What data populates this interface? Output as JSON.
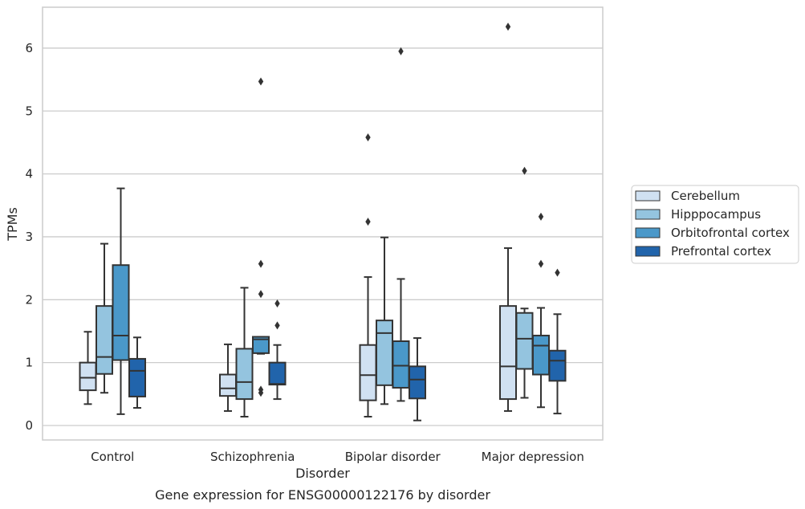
{
  "chart_data": {
    "type": "box",
    "title": "",
    "caption": "Gene expression for ENSG00000122176 by disorder",
    "xlabel": "Disorder",
    "ylabel": "TPMs",
    "ylim": [
      -0.23,
      6.65
    ],
    "yticks": [
      "0",
      "1",
      "2",
      "3",
      "4",
      "5",
      "6"
    ],
    "grid": "horizontal",
    "legend_position": "right",
    "categories": [
      "Control",
      "Schizophrenia",
      "Bipolar disorder",
      "Major depression"
    ],
    "series": [
      {
        "name": "Cerebellum",
        "color": "#d0e1f2",
        "boxes": [
          {
            "whislo": 0.34,
            "q1": 0.56,
            "med": 0.76,
            "q3": 1.0,
            "whishi": 1.49,
            "fliers": []
          },
          {
            "whislo": 0.23,
            "q1": 0.47,
            "med": 0.59,
            "q3": 0.81,
            "whishi": 1.29,
            "fliers": []
          },
          {
            "whislo": 0.14,
            "q1": 0.4,
            "med": 0.8,
            "q3": 1.28,
            "whishi": 2.36,
            "fliers": [
              3.24,
              4.58
            ]
          },
          {
            "whislo": 0.23,
            "q1": 0.42,
            "med": 0.94,
            "q3": 1.9,
            "whishi": 2.82,
            "fliers": [
              6.34
            ]
          }
        ]
      },
      {
        "name": "Hipppocampus",
        "color": "#94c4df",
        "boxes": [
          {
            "whislo": 0.52,
            "q1": 0.82,
            "med": 1.09,
            "q3": 1.9,
            "whishi": 2.89,
            "fliers": []
          },
          {
            "whislo": 0.14,
            "q1": 0.42,
            "med": 0.69,
            "q3": 1.22,
            "whishi": 2.19,
            "fliers": []
          },
          {
            "whislo": 0.34,
            "q1": 0.64,
            "med": 1.47,
            "q3": 1.67,
            "whishi": 2.99,
            "fliers": []
          },
          {
            "whislo": 0.44,
            "q1": 0.9,
            "med": 1.38,
            "q3": 1.79,
            "whishi": 1.86,
            "fliers": [
              4.05
            ]
          }
        ]
      },
      {
        "name": "Orbitofrontal cortex",
        "color": "#4a98c9",
        "boxes": [
          {
            "whislo": 0.18,
            "q1": 1.04,
            "med": 1.43,
            "q3": 2.55,
            "whishi": 3.77,
            "fliers": []
          },
          {
            "whislo": 1.14,
            "q1": 1.15,
            "med": 1.37,
            "q3": 1.41,
            "whishi": 1.41,
            "fliers": [
              0.52,
              0.57,
              2.09,
              2.57,
              5.47
            ]
          },
          {
            "whislo": 0.39,
            "q1": 0.6,
            "med": 0.95,
            "q3": 1.34,
            "whishi": 2.33,
            "fliers": [
              5.95
            ]
          },
          {
            "whislo": 0.29,
            "q1": 0.81,
            "med": 1.27,
            "q3": 1.43,
            "whishi": 1.87,
            "fliers": [
              2.57,
              3.32
            ]
          }
        ]
      },
      {
        "name": "Prefrontal cortex",
        "color": "#2164ab",
        "boxes": [
          {
            "whislo": 0.28,
            "q1": 0.46,
            "med": 0.87,
            "q3": 1.06,
            "whishi": 1.4,
            "fliers": []
          },
          {
            "whislo": 0.42,
            "q1": 0.65,
            "med": 0.66,
            "q3": 1.0,
            "whishi": 1.28,
            "fliers": [
              1.59,
              1.94
            ]
          },
          {
            "whislo": 0.08,
            "q1": 0.43,
            "med": 0.73,
            "q3": 0.94,
            "whishi": 1.39,
            "fliers": []
          },
          {
            "whislo": 0.19,
            "q1": 0.71,
            "med": 1.03,
            "q3": 1.19,
            "whishi": 1.77,
            "fliers": [
              2.43
            ]
          }
        ]
      }
    ]
  }
}
